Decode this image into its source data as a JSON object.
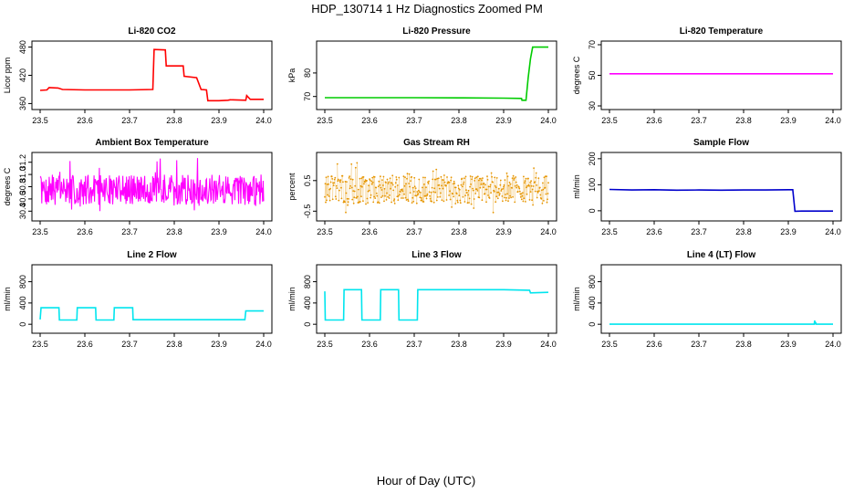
{
  "figure": {
    "title": "HDP_130714  1 Hz Diagnostics Zoomed PM",
    "xlabel": "Hour of Day (UTC)"
  },
  "chart_data": [
    {
      "type": "line",
      "title": "Li-820 CO2",
      "ylabel": "Licor ppm",
      "xlabel": "",
      "xlim": [
        23.5,
        24.0
      ],
      "ylim": [
        355,
        485
      ],
      "xticks": [
        "23.5",
        "23.6",
        "23.7",
        "23.8",
        "23.9",
        "24.0"
      ],
      "xtick_values": [
        23.5,
        23.6,
        23.7,
        23.8,
        23.9,
        24.0
      ],
      "yticks": [
        "360",
        "420",
        "480"
      ],
      "ytick_values": [
        360,
        420,
        480
      ],
      "series": [
        {
          "color": "#ff0000",
          "x": [
            23.5,
            23.515,
            23.52,
            23.54,
            23.55,
            23.6,
            23.65,
            23.7,
            23.752,
            23.755,
            23.78,
            23.782,
            23.8,
            23.82,
            23.822,
            23.85,
            23.86,
            23.872,
            23.875,
            23.9,
            23.92,
            23.925,
            23.96,
            23.962,
            23.97,
            24.0
          ],
          "y": [
            388,
            389,
            394,
            393,
            390,
            389,
            389,
            389,
            390,
            475,
            474,
            440,
            440,
            440,
            418,
            415,
            390,
            389,
            366,
            366,
            367,
            368,
            367,
            377,
            369,
            369
          ]
        }
      ]
    },
    {
      "type": "line",
      "title": "Li-820 Pressure",
      "ylabel": "kPa",
      "xlabel": "",
      "xlim": [
        23.5,
        24.0
      ],
      "ylim": [
        66,
        92
      ],
      "xticks": [
        "23.5",
        "23.6",
        "23.7",
        "23.8",
        "23.9",
        "24.0"
      ],
      "xtick_values": [
        23.5,
        23.6,
        23.7,
        23.8,
        23.9,
        24.0
      ],
      "yticks": [
        "70",
        "80"
      ],
      "ytick_values": [
        70,
        80
      ],
      "series": [
        {
          "color": "#00cc00",
          "x": [
            23.5,
            23.6,
            23.7,
            23.8,
            23.9,
            23.94,
            23.941,
            23.95,
            23.955,
            23.96,
            23.965,
            24.0
          ],
          "y": [
            69.5,
            69.5,
            69.5,
            69.4,
            69.3,
            69.2,
            68.4,
            68.4,
            78,
            86,
            91,
            91
          ]
        }
      ]
    },
    {
      "type": "line",
      "title": "Li-820 Temperature",
      "ylabel": "degrees C",
      "xlabel": "",
      "xlim": [
        23.5,
        24.0
      ],
      "ylim": [
        30,
        70
      ],
      "xticks": [
        "23.5",
        "23.6",
        "23.7",
        "23.8",
        "23.9",
        "24.0"
      ],
      "xtick_values": [
        23.5,
        23.6,
        23.7,
        23.8,
        23.9,
        24.0
      ],
      "yticks": [
        "30",
        "50",
        "70"
      ],
      "ytick_values": [
        30,
        50,
        70
      ],
      "series": [
        {
          "color": "#ff00ff",
          "x": [
            23.5,
            24.0
          ],
          "y": [
            51,
            51
          ]
        }
      ]
    },
    {
      "type": "line",
      "title": "Ambient Box Temperature",
      "ylabel": "degrees C",
      "xlabel": "",
      "xlim": [
        23.5,
        24.0
      ],
      "ylim": [
        30.3,
        31.3
      ],
      "xticks": [
        "23.5",
        "23.6",
        "23.7",
        "23.8",
        "23.9",
        "24.0"
      ],
      "xtick_values": [
        23.5,
        23.6,
        23.7,
        23.8,
        23.9,
        24.0
      ],
      "yticks": [
        "30.4",
        "30.6",
        "30.8",
        "31.0",
        "31.2"
      ],
      "ytick_values": [
        30.4,
        30.6,
        30.8,
        31.0,
        31.2
      ],
      "series": [
        {
          "color": "#ff00ff",
          "noise": {
            "center": 30.75,
            "low": 30.4,
            "high": 31.3,
            "n": 420,
            "seed": 7
          }
        }
      ]
    },
    {
      "type": "scatter",
      "title": "Gas Stream RH",
      "ylabel": "percent",
      "xlabel": "",
      "xlim": [
        23.5,
        24.0
      ],
      "ylim": [
        -0.7,
        1.3
      ],
      "xticks": [
        "23.5",
        "23.6",
        "23.7",
        "23.8",
        "23.9",
        "24.0"
      ],
      "xtick_values": [
        23.5,
        23.6,
        23.7,
        23.8,
        23.9,
        24.0
      ],
      "yticks": [
        "-0.5",
        "0.5"
      ],
      "ytick_values": [
        -0.5,
        0.5
      ],
      "series": [
        {
          "color": "#e69500",
          "noise": {
            "center": 0.2,
            "low": -0.55,
            "high": 1.1,
            "n": 480,
            "seed": 13
          }
        }
      ]
    },
    {
      "type": "line",
      "title": "Sample Flow",
      "ylabel": "ml/min",
      "xlabel": "",
      "xlim": [
        23.5,
        24.0
      ],
      "ylim": [
        -25,
        210
      ],
      "xticks": [
        "23.5",
        "23.6",
        "23.7",
        "23.8",
        "23.9",
        "24.0"
      ],
      "xtick_values": [
        23.5,
        23.6,
        23.7,
        23.8,
        23.9,
        24.0
      ],
      "yticks": [
        "0",
        "100",
        "200"
      ],
      "ytick_values": [
        0,
        100,
        200
      ],
      "series": [
        {
          "color": "#0000cc",
          "x": [
            23.5,
            23.55,
            23.6,
            23.65,
            23.7,
            23.75,
            23.8,
            23.85,
            23.9,
            23.91,
            23.915,
            23.93,
            24.0
          ],
          "y": [
            82,
            80,
            81,
            79,
            80,
            79,
            80,
            80,
            81,
            81,
            -2,
            -1,
            -1
          ]
        }
      ]
    },
    {
      "type": "line",
      "title": "Line 2 Flow",
      "ylabel": "ml/min",
      "xlabel": "",
      "xlim": [
        23.5,
        24.0
      ],
      "ylim": [
        -100,
        1050
      ],
      "xticks": [
        "23.5",
        "23.6",
        "23.7",
        "23.8",
        "23.9",
        "24.0"
      ],
      "xtick_values": [
        23.5,
        23.6,
        23.7,
        23.8,
        23.9,
        24.0
      ],
      "yticks": [
        "0",
        "400",
        "800"
      ],
      "ytick_values": [
        0,
        400,
        800
      ],
      "series": [
        {
          "color": "#00e5ee",
          "x": [
            23.5,
            23.502,
            23.542,
            23.543,
            23.582,
            23.583,
            23.624,
            23.625,
            23.665,
            23.666,
            23.707,
            23.708,
            23.8,
            23.958,
            23.96,
            24.0
          ],
          "y": [
            90,
            310,
            310,
            80,
            80,
            310,
            310,
            80,
            80,
            310,
            310,
            85,
            85,
            85,
            250,
            250
          ]
        }
      ]
    },
    {
      "type": "line",
      "title": "Line 3 Flow",
      "ylabel": "ml/min",
      "xlabel": "",
      "xlim": [
        23.5,
        24.0
      ],
      "ylim": [
        -100,
        1050
      ],
      "xticks": [
        "23.5",
        "23.6",
        "23.7",
        "23.8",
        "23.9",
        "24.0"
      ],
      "xtick_values": [
        23.5,
        23.6,
        23.7,
        23.8,
        23.9,
        24.0
      ],
      "yticks": [
        "0",
        "400",
        "800"
      ],
      "ytick_values": [
        0,
        400,
        800
      ],
      "series": [
        {
          "color": "#00e5ee",
          "x": [
            23.5,
            23.501,
            23.502,
            23.542,
            23.543,
            23.582,
            23.583,
            23.624,
            23.625,
            23.665,
            23.666,
            23.707,
            23.708,
            23.8,
            23.9,
            23.958,
            23.96,
            24.0
          ],
          "y": [
            620,
            80,
            80,
            80,
            650,
            650,
            80,
            80,
            650,
            650,
            80,
            80,
            650,
            650,
            650,
            640,
            590,
            600
          ]
        }
      ]
    },
    {
      "type": "line",
      "title": "Line 4 (LT) Flow",
      "ylabel": "ml/min",
      "xlabel": "",
      "xlim": [
        23.5,
        24.0
      ],
      "ylim": [
        -100,
        1050
      ],
      "xticks": [
        "23.5",
        "23.6",
        "23.7",
        "23.8",
        "23.9",
        "24.0"
      ],
      "xtick_values": [
        23.5,
        23.6,
        23.7,
        23.8,
        23.9,
        24.0
      ],
      "yticks": [
        "0",
        "400",
        "800"
      ],
      "ytick_values": [
        0,
        400,
        800
      ],
      "series": [
        {
          "color": "#00e5ee",
          "x": [
            23.5,
            23.9,
            23.958,
            23.959,
            23.96,
            23.961,
            23.962,
            24.0
          ],
          "y": [
            2,
            2,
            2,
            70,
            2,
            40,
            2,
            2
          ]
        }
      ]
    }
  ]
}
